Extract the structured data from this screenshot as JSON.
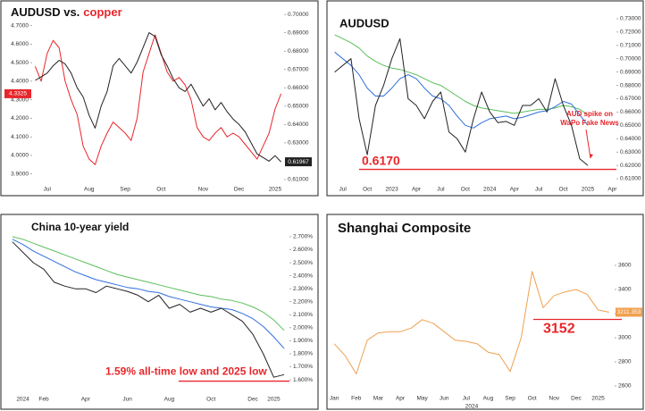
{
  "chart_data": [
    {
      "type": "line",
      "title": [
        "AUDUSD vs.",
        "copper"
      ],
      "title_colors": [
        "#111111",
        "#e8262b"
      ],
      "categories": [
        null,
        null,
        "Jul",
        null,
        null,
        null,
        null,
        null,
        null,
        "Aug",
        null,
        null,
        null,
        null,
        null,
        "Sep",
        null,
        null,
        null,
        null,
        null,
        "Oct",
        null,
        null,
        null,
        null,
        null,
        null,
        "Nov",
        null,
        null,
        null,
        null,
        null,
        "Dec",
        null,
        null,
        null,
        null,
        null,
        "2025",
        null
      ],
      "ylim": [
        3.86,
        4.78
      ],
      "yticks": [
        {
          "value": 3.9,
          "label": "3.9000"
        },
        {
          "value": 4.0,
          "label": "4.0000"
        },
        {
          "value": 4.1,
          "label": "4.1000"
        },
        {
          "value": 4.2,
          "label": "4.2000"
        },
        {
          "value": 4.3,
          "label": "4.3000"
        },
        {
          "value": 4.4,
          "label": "4.4000"
        },
        {
          "value": 4.5,
          "label": "4.5000"
        },
        {
          "value": 4.6,
          "label": "4.6000"
        },
        {
          "value": 4.7,
          "label": "4.7000"
        }
      ],
      "y2lim": [
        0.609,
        0.702
      ],
      "y2ticks": [
        {
          "value": 0.61,
          "label": "0.61000"
        },
        {
          "value": 0.63,
          "label": "0.63000"
        },
        {
          "value": 0.64,
          "label": "0.64000"
        },
        {
          "value": 0.65,
          "label": "0.65000"
        },
        {
          "value": 0.66,
          "label": "0.66000"
        },
        {
          "value": 0.67,
          "label": "0.67000"
        },
        {
          "value": 0.68,
          "label": "0.68000"
        },
        {
          "value": 0.69,
          "label": "0.69000"
        },
        {
          "value": 0.7,
          "label": "0.70000"
        }
      ],
      "series": [
        {
          "color": "#e8262b",
          "axis": "y",
          "end_label": "4.3325",
          "values": [
            4.48,
            4.4,
            4.55,
            4.62,
            4.58,
            4.4,
            4.3,
            4.22,
            4.05,
            3.98,
            3.95,
            4.05,
            4.12,
            4.18,
            4.15,
            4.12,
            4.08,
            4.2,
            4.45,
            4.55,
            4.65,
            4.55,
            4.45,
            4.4,
            4.42,
            4.38,
            4.3,
            4.15,
            4.1,
            4.08,
            4.12,
            4.15,
            4.1,
            4.12,
            4.1,
            4.06,
            4.02,
            3.98,
            4.05,
            4.12,
            4.25,
            4.3325
          ]
        },
        {
          "color": "#222222",
          "axis": "y2",
          "end_label": "0.61967",
          "values": [
            0.664,
            0.666,
            0.668,
            0.672,
            0.675,
            0.673,
            0.668,
            0.66,
            0.655,
            0.645,
            0.638,
            0.65,
            0.658,
            0.672,
            0.676,
            0.672,
            0.668,
            0.674,
            0.682,
            0.69,
            0.688,
            0.678,
            0.672,
            0.665,
            0.66,
            0.658,
            0.662,
            0.656,
            0.65,
            0.654,
            0.648,
            0.652,
            0.647,
            0.643,
            0.64,
            0.636,
            0.63,
            0.624,
            0.622,
            0.62,
            0.623,
            0.61967
          ]
        }
      ]
    },
    {
      "type": "line",
      "title": "AUDUSD",
      "y_axis_position": "right",
      "categories": [
        null,
        "Jul",
        null,
        null,
        "Oct",
        null,
        null,
        "2023",
        null,
        null,
        "Apr",
        null,
        null,
        "Jul",
        null,
        null,
        "Oct",
        null,
        null,
        "2024",
        null,
        null,
        "Apr",
        null,
        null,
        "Jul",
        null,
        null,
        "Oct",
        null,
        null,
        "2025",
        null,
        null,
        "Apr"
      ],
      "ylim": [
        0.608,
        0.734
      ],
      "yticks": [
        {
          "value": 0.61,
          "label": "0.61000"
        },
        {
          "value": 0.62,
          "label": "0.62000"
        },
        {
          "value": 0.63,
          "label": "0.63000"
        },
        {
          "value": 0.64,
          "label": "0.64000"
        },
        {
          "value": 0.65,
          "label": "0.65000"
        },
        {
          "value": 0.66,
          "label": "0.66000"
        },
        {
          "value": 0.67,
          "label": "0.67000"
        },
        {
          "value": 0.68,
          "label": "0.68000"
        },
        {
          "value": 0.69,
          "label": "0.69000"
        },
        {
          "value": 0.7,
          "label": "0.70000"
        },
        {
          "value": 0.71,
          "label": "0.71000"
        },
        {
          "value": 0.72,
          "label": "0.72000"
        },
        {
          "value": 0.73,
          "label": "0.73000"
        }
      ],
      "series": [
        {
          "color": "#5bbf5b",
          "values": [
            0.718,
            0.715,
            0.712,
            0.708,
            0.702,
            0.698,
            0.695,
            0.693,
            0.692,
            0.69,
            0.688,
            0.685,
            0.682,
            0.68,
            0.676,
            0.672,
            0.668,
            0.665,
            0.663,
            0.662,
            0.661,
            0.66,
            0.659,
            0.66,
            0.661,
            0.662,
            0.662,
            0.663,
            0.665,
            0.664,
            0.662,
            0.658,
            null,
            null,
            null
          ]
        },
        {
          "color": "#2f6fdb",
          "values": [
            0.705,
            0.7,
            0.695,
            0.688,
            0.678,
            0.672,
            0.672,
            0.678,
            0.685,
            0.688,
            0.685,
            0.678,
            0.672,
            0.67,
            0.665,
            0.657,
            0.65,
            0.648,
            0.652,
            0.655,
            0.656,
            0.657,
            0.655,
            0.656,
            0.658,
            0.66,
            0.661,
            0.664,
            0.668,
            0.666,
            0.658,
            0.65,
            null,
            null,
            null
          ]
        },
        {
          "color": "#222222",
          "values": [
            0.69,
            0.695,
            0.7,
            0.655,
            0.628,
            0.665,
            0.68,
            0.7,
            0.715,
            0.67,
            0.665,
            0.655,
            0.668,
            0.675,
            0.645,
            0.64,
            0.63,
            0.655,
            0.675,
            0.66,
            0.652,
            0.653,
            0.65,
            0.665,
            0.665,
            0.67,
            0.66,
            0.685,
            0.665,
            0.65,
            0.625,
            0.62,
            null,
            null,
            null
          ]
        }
      ],
      "hline": {
        "value": 0.617,
        "label": "0.6170"
      },
      "hline_color": "#e8262b",
      "callout": [
        "AUD spike on",
        "WaPo Fake News"
      ]
    },
    {
      "type": "line",
      "title": "China 10-year yield",
      "y_axis_position": "right",
      "categories": [
        null,
        "2024",
        null,
        "Feb",
        null,
        null,
        null,
        "Apr",
        null,
        null,
        null,
        "Jun",
        null,
        null,
        null,
        "Aug",
        null,
        null,
        null,
        "Oct",
        null,
        null,
        null,
        "Dec",
        null,
        "2025",
        null
      ],
      "ylim": [
        1.58,
        2.72
      ],
      "yticks": [
        {
          "value": 1.6,
          "label": "1.600%"
        },
        {
          "value": 1.7,
          "label": "1.700%"
        },
        {
          "value": 1.8,
          "label": "1.800%"
        },
        {
          "value": 1.9,
          "label": "1.900%"
        },
        {
          "value": 2.0,
          "label": "2.000%"
        },
        {
          "value": 2.1,
          "label": "2.100%"
        },
        {
          "value": 2.2,
          "label": "2.200%"
        },
        {
          "value": 2.3,
          "label": "2.300%"
        },
        {
          "value": 2.4,
          "label": "2.400%"
        },
        {
          "value": 2.5,
          "label": "2.500%"
        },
        {
          "value": 2.6,
          "label": "2.600%"
        },
        {
          "value": 2.7,
          "label": "2.700%"
        }
      ],
      "series": [
        {
          "color": "#5bbf5b",
          "values": [
            2.7,
            2.68,
            2.65,
            2.62,
            2.59,
            2.56,
            2.53,
            2.5,
            2.47,
            2.44,
            2.41,
            2.39,
            2.37,
            2.35,
            2.33,
            2.31,
            2.29,
            2.27,
            2.25,
            2.24,
            2.22,
            2.21,
            2.19,
            2.16,
            2.12,
            2.06,
            1.98
          ]
        },
        {
          "color": "#2f6fdb",
          "values": [
            2.68,
            2.64,
            2.59,
            2.55,
            2.51,
            2.47,
            2.43,
            2.4,
            2.37,
            2.35,
            2.33,
            2.31,
            2.3,
            2.28,
            2.27,
            2.24,
            2.22,
            2.2,
            2.18,
            2.16,
            2.15,
            2.14,
            2.11,
            2.07,
            2.01,
            1.93,
            1.84
          ]
        },
        {
          "color": "#222222",
          "values": [
            2.66,
            2.58,
            2.5,
            2.45,
            2.35,
            2.32,
            2.3,
            2.3,
            2.27,
            2.32,
            2.3,
            2.28,
            2.25,
            2.2,
            2.25,
            2.15,
            2.18,
            2.12,
            2.15,
            2.12,
            2.15,
            2.1,
            2.05,
            1.95,
            1.8,
            1.62,
            1.64
          ]
        }
      ],
      "hline": {
        "value": 1.59,
        "label": "1.59% all-time low and 2025 low"
      },
      "hline_color": "#e8262b"
    },
    {
      "type": "line",
      "title": "Shanghai Composite",
      "y_axis_position": "right",
      "categories": [
        "Jan",
        null,
        "Feb",
        null,
        "Mar",
        null,
        "Apr",
        null,
        "May",
        null,
        "Jun",
        null,
        "Jul",
        null,
        "Aug",
        null,
        "Sep",
        null,
        "Oct",
        null,
        "Nov",
        null,
        "Dec",
        null,
        "2025",
        null
      ],
      "x_group_label": "2024",
      "ylim": [
        2600,
        3800
      ],
      "yticks": [
        2600,
        2800,
        3000,
        3200,
        3400,
        3600
      ],
      "series": [
        {
          "color": "#f0a050",
          "end_label": "3211.353",
          "values": [
            2950,
            2850,
            2700,
            2980,
            3040,
            3050,
            3050,
            3080,
            3150,
            3120,
            3050,
            2980,
            2970,
            2950,
            2880,
            2860,
            2720,
            3000,
            3550,
            3250,
            3350,
            3380,
            3400,
            3360,
            3230,
            3211.353
          ]
        }
      ],
      "hline": {
        "value": 3152
      },
      "hline_color": "#e8262b"
    }
  ]
}
